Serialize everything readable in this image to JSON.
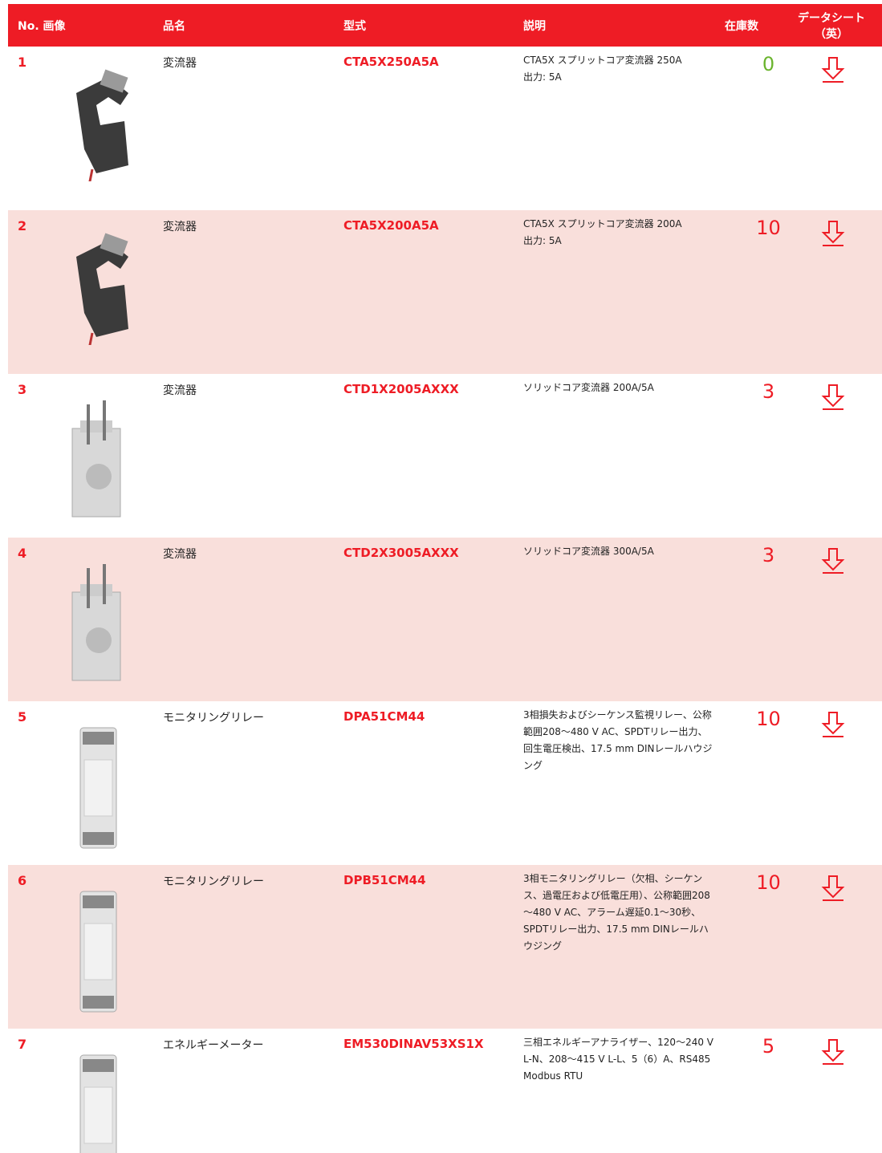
{
  "table": {
    "headers": [
      "No. 画像",
      "品名",
      "型式",
      "説明",
      "在庫数",
      "データシート（英）"
    ],
    "rows": [
      {
        "no": "1",
        "name": "変流器",
        "model": "CTA5X250A5A",
        "description": [
          "CTA5X スプリットコア変流器 250A",
          "出力: 5A"
        ],
        "stock": 0
      },
      {
        "no": "2",
        "name": "変流器",
        "model": "CTA5X200A5A",
        "description": [
          "CTA5X スプリットコア変流器 200A",
          "出力: 5A"
        ],
        "stock": 10
      },
      {
        "no": "3",
        "name": "変流器",
        "model": "CTD1X2005AXXX",
        "description": [
          "ソリッドコア変流器 200A/5A"
        ],
        "stock": 3
      },
      {
        "no": "4",
        "name": "変流器",
        "model": "CTD2X3005AXXX",
        "description": [
          "ソリッドコア変流器 300A/5A"
        ],
        "stock": 3
      },
      {
        "no": "5",
        "name": "モニタリングリレー",
        "model": "DPA51CM44",
        "description": [
          "3相損失およびシーケンス監視リレー、公称範囲208～480 V AC、SPDTリレー出力、回生電圧検出、17.5 mm DINレールハウジング"
        ],
        "stock": 10
      },
      {
        "no": "6",
        "name": "モニタリングリレー",
        "model": "DPB51CM44",
        "description": [
          "3相モニタリングリレー（欠相、シーケンス、過電圧および低電圧用）、公称範囲208～480 V AC、アラーム遅延0.1～30秒、SPDTリレー出力、17.5 mm DINレールハウジング"
        ],
        "stock": 10
      },
      {
        "no": "7",
        "name": "エネルギーメーター",
        "model": "EM530DINAV53XS1X",
        "description": [
          "三相エネルギーアナライザー、120～240 V L-N、208～415 V L-L、5（6）A、RS485 Modbus RTU"
        ],
        "stock": 5
      }
    ]
  }
}
